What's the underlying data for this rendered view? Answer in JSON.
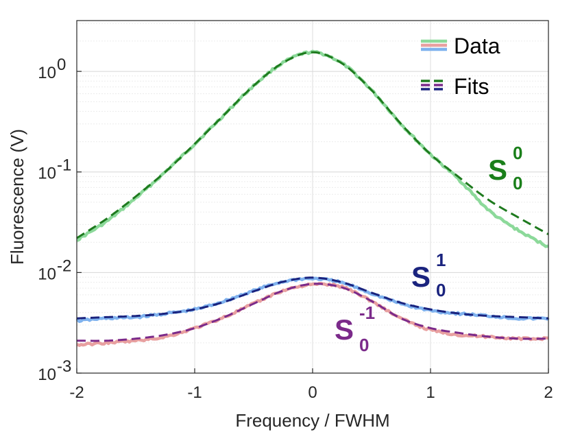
{
  "chart_data": {
    "type": "line",
    "xlabel": "Frequency / FWHM",
    "ylabel": "Fluorescence (V)",
    "xlim": [
      -2,
      2
    ],
    "ylim": [
      0.001,
      3.2
    ],
    "yscale": "log",
    "grid": true,
    "x_ticks": [
      -2,
      -1,
      0,
      1,
      2
    ],
    "x_tick_labels": [
      "-2",
      "-1",
      "0",
      "1",
      "2"
    ],
    "y_ticks": [
      {
        "value": 0.001,
        "base": "10",
        "exp": "-3"
      },
      {
        "value": 0.01,
        "base": "10",
        "exp": "-2"
      },
      {
        "value": 0.1,
        "base": "10",
        "exp": "-1"
      },
      {
        "value": 1,
        "base": "10",
        "exp": "0"
      }
    ],
    "legend": {
      "position": "top-right",
      "data_label": "Data",
      "fits_label": "Fits",
      "data_colors": [
        "#8cd99a",
        "#e8a0a0",
        "#7fb2ee"
      ],
      "fits_colors": [
        "#1e7a1e",
        "#7b2a8a",
        "#1a237e"
      ]
    },
    "series": [
      {
        "key": "s00",
        "label_main": "S",
        "label_sup": "0",
        "label_sub": "0",
        "label_color": "#1a7f1a",
        "data_color": "#8cd99a",
        "fit_color": "#1e7a1e",
        "data_x": [
          -2,
          -1.75,
          -1.5,
          -1.25,
          -1,
          -0.75,
          -0.5,
          -0.25,
          0,
          0.25,
          0.5,
          0.75,
          1,
          1.25,
          1.5,
          1.75,
          2
        ],
        "data_y": [
          0.021,
          0.032,
          0.055,
          0.1,
          0.19,
          0.37,
          0.72,
          1.22,
          1.55,
          1.2,
          0.65,
          0.3,
          0.15,
          0.082,
          0.041,
          0.026,
          0.018
        ],
        "fit_x": [
          -2,
          -1.75,
          -1.5,
          -1.25,
          -1,
          -0.75,
          -0.5,
          -0.25,
          0,
          0.25,
          0.5,
          0.75,
          1,
          1.25,
          1.5,
          1.75,
          2
        ],
        "fit_y": [
          0.022,
          0.034,
          0.057,
          0.1,
          0.19,
          0.37,
          0.72,
          1.22,
          1.55,
          1.2,
          0.65,
          0.3,
          0.15,
          0.087,
          0.052,
          0.035,
          0.024
        ]
      },
      {
        "key": "s01",
        "label_main": "S",
        "label_sup": "1",
        "label_sub": "0",
        "label_color": "#1a237e",
        "data_color": "#7fb2ee",
        "fit_color": "#1a237e",
        "data_x": [
          -2,
          -1.75,
          -1.5,
          -1.25,
          -1,
          -0.75,
          -0.5,
          -0.25,
          0,
          0.25,
          0.5,
          0.75,
          1,
          1.25,
          1.5,
          1.75,
          2
        ],
        "data_y": [
          0.0033,
          0.0035,
          0.0036,
          0.0039,
          0.0043,
          0.0052,
          0.0066,
          0.0081,
          0.0087,
          0.0079,
          0.0062,
          0.0049,
          0.0042,
          0.0039,
          0.0037,
          0.0035,
          0.0035
        ],
        "fit_x": [
          -2,
          -1.75,
          -1.5,
          -1.25,
          -1,
          -0.75,
          -0.5,
          -0.25,
          0,
          0.25,
          0.5,
          0.75,
          1,
          1.25,
          1.5,
          1.75,
          2
        ],
        "fit_y": [
          0.0035,
          0.0036,
          0.0037,
          0.0039,
          0.0043,
          0.0051,
          0.0065,
          0.0081,
          0.0089,
          0.008,
          0.0063,
          0.005,
          0.0043,
          0.0039,
          0.0037,
          0.0036,
          0.0035
        ]
      },
      {
        "key": "s0m1",
        "label_main": "S",
        "label_sup": "-1",
        "label_sub": "0",
        "label_color": "#7b2a8a",
        "data_color": "#e8a0a0",
        "fit_color": "#7b2a8a",
        "data_x": [
          -2,
          -1.75,
          -1.5,
          -1.25,
          -1,
          -0.75,
          -0.5,
          -0.25,
          0,
          0.25,
          0.5,
          0.75,
          1,
          1.25,
          1.5,
          1.75,
          2
        ],
        "data_y": [
          0.0019,
          0.002,
          0.0021,
          0.0023,
          0.0028,
          0.0036,
          0.0049,
          0.0066,
          0.0076,
          0.0072,
          0.0052,
          0.0035,
          0.0027,
          0.0024,
          0.0023,
          0.0022,
          0.0022
        ],
        "fit_x": [
          -2,
          -1.75,
          -1.5,
          -1.25,
          -1,
          -0.75,
          -0.5,
          -0.25,
          0,
          0.25,
          0.5,
          0.75,
          1,
          1.25,
          1.5,
          1.75,
          2
        ],
        "fit_y": [
          0.0021,
          0.0021,
          0.0022,
          0.0024,
          0.0028,
          0.0036,
          0.0049,
          0.0066,
          0.0077,
          0.0071,
          0.0052,
          0.0035,
          0.0028,
          0.0025,
          0.0023,
          0.0022,
          0.0022
        ]
      }
    ]
  }
}
